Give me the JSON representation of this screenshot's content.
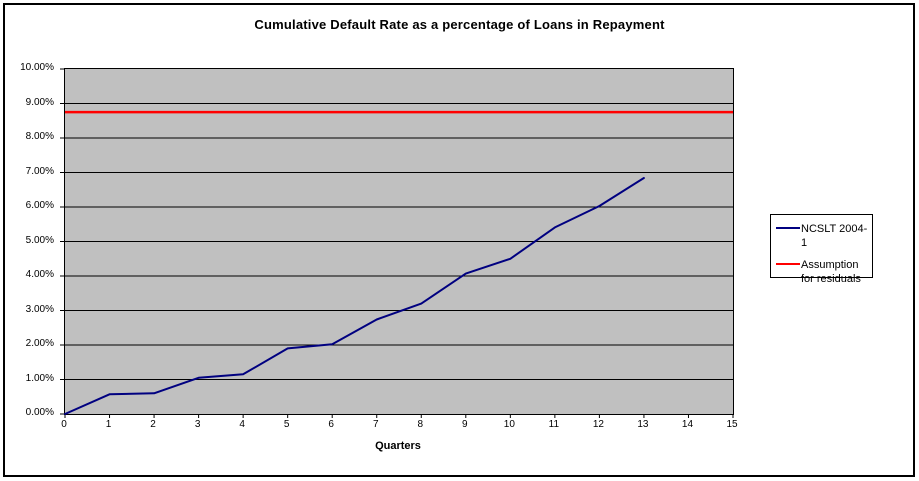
{
  "chart_data": {
    "type": "line",
    "title": "Cumulative Default Rate as a percentage of Loans in Repayment",
    "xlabel": "Quarters",
    "ylabel": "",
    "xlim": [
      0,
      15
    ],
    "ylim": [
      0,
      10
    ],
    "grid": true,
    "plot_background": "#C0C0C0",
    "gridline_color": "#000000",
    "axis_color": "#000000",
    "legend_position": "right",
    "x_ticks": [
      0,
      1,
      2,
      3,
      4,
      5,
      6,
      7,
      8,
      9,
      10,
      11,
      12,
      13,
      14,
      15
    ],
    "y_tick_labels": [
      "0.00%",
      "1.00%",
      "2.00%",
      "3.00%",
      "4.00%",
      "5.00%",
      "6.00%",
      "7.00%",
      "8.00%",
      "9.00%",
      "10.00%"
    ],
    "series": [
      {
        "name": "NCSLT 2004-1",
        "type": "line",
        "color": "#000080",
        "x": [
          0,
          1,
          2,
          3,
          4,
          5,
          6,
          7,
          8,
          9,
          10,
          11,
          12,
          13
        ],
        "values": [
          0.0,
          0.57,
          0.6,
          1.05,
          1.15,
          1.9,
          2.02,
          2.74,
          3.2,
          4.07,
          4.5,
          5.41,
          6.03,
          6.84
        ]
      },
      {
        "name": "Assumption for residuals",
        "type": "hline",
        "color": "#FF0000",
        "value": 8.75
      }
    ],
    "legend": [
      {
        "label": "NCSLT 2004-1",
        "color": "#000080"
      },
      {
        "label": "Assumption for residuals",
        "color": "#FF0000"
      }
    ]
  }
}
